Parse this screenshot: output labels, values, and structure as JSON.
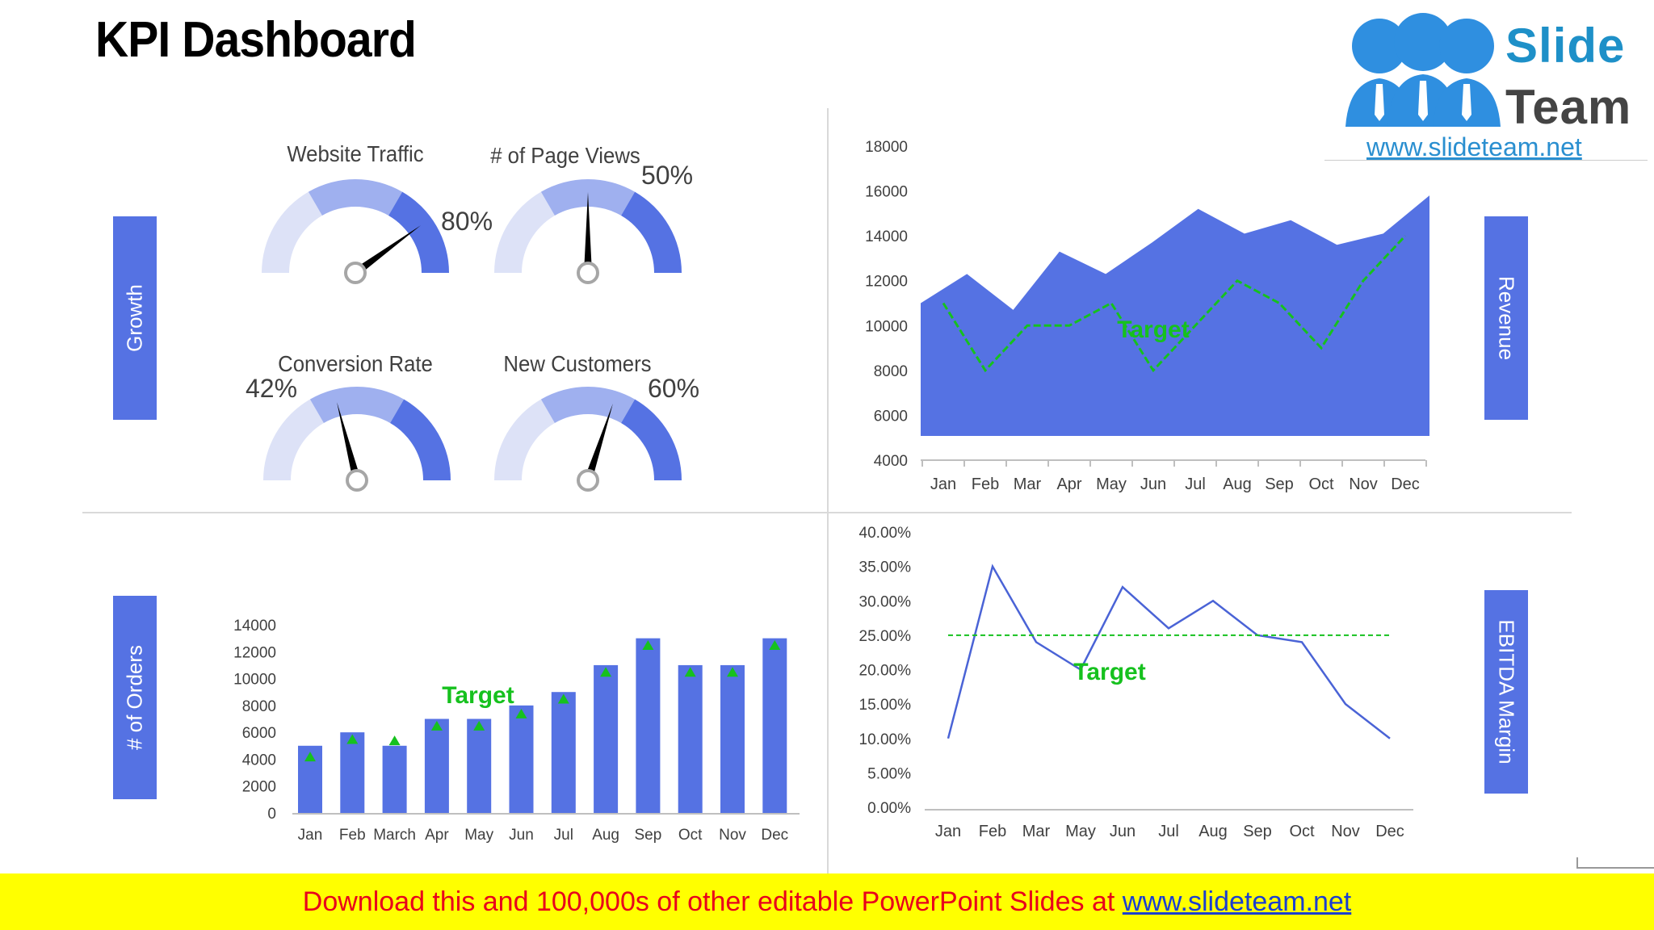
{
  "page_title": "KPI Dashboard",
  "labels": {
    "growth": "Growth",
    "revenue": "Revenue",
    "orders": "# of Orders",
    "ebitda": "EBITDA Margin"
  },
  "logo": {
    "word1": "Slide",
    "word2": "Team",
    "url": "www.slideteam.net",
    "colors": {
      "figures": "#2f8fe0",
      "text": "#1e90c8"
    }
  },
  "footer": {
    "text": "Download this and 100,000s of other editable PowerPoint Slides at ",
    "link": "www.slideteam.net"
  },
  "colors": {
    "accent": "#5572e3",
    "gauge_light": "#dde2f7",
    "gauge_mid": "#9fb0ef",
    "target": "#16c11e",
    "footer_bg": "#ffff00",
    "footer_text": "#e8001c"
  },
  "chart_data": [
    {
      "type": "gauge",
      "title": "Website Traffic",
      "value": 80,
      "value_label": "80%",
      "range": [
        0,
        100
      ]
    },
    {
      "type": "gauge",
      "title": "# of Page Views",
      "value": 50,
      "value_label": "50%",
      "range": [
        0,
        100
      ]
    },
    {
      "type": "gauge",
      "title": "Conversion Rate",
      "value": 42,
      "value_label": "42%",
      "range": [
        0,
        100
      ]
    },
    {
      "type": "gauge",
      "title": "New Customers",
      "value": 60,
      "value_label": "60%",
      "range": [
        0,
        100
      ]
    },
    {
      "type": "area",
      "categories": [
        "Jan",
        "Feb",
        "Mar",
        "Apr",
        "May",
        "Jun",
        "Jul",
        "Aug",
        "Sep",
        "Oct",
        "Nov",
        "Dec"
      ],
      "series": [
        {
          "values": [
            11000,
            12300,
            10700,
            13300,
            12300,
            13700,
            15200,
            14100,
            14700,
            13600,
            14100,
            15800
          ]
        },
        {
          "name": "Target",
          "type": "line",
          "values": [
            11000,
            8000,
            10000,
            10000,
            11000,
            8000,
            10000,
            12000,
            11000,
            9000,
            12000,
            14000
          ]
        }
      ],
      "ylim": [
        4000,
        18000
      ],
      "yticks": [
        "4000",
        "6000",
        "8000",
        "10000",
        "12000",
        "14000",
        "16000",
        "18000"
      ],
      "annotation": "Target"
    },
    {
      "type": "bar",
      "categories": [
        "Jan",
        "Feb",
        "March",
        "Apr",
        "May",
        "Jun",
        "Jul",
        "Aug",
        "Sep",
        "Oct",
        "Nov",
        "Dec"
      ],
      "series": [
        {
          "values": [
            5000,
            6000,
            5000,
            7000,
            7000,
            8000,
            9000,
            11000,
            13000,
            11000,
            11000,
            13000
          ]
        },
        {
          "name": "Target",
          "type": "marker",
          "values": [
            4200,
            5500,
            5400,
            6500,
            6500,
            7400,
            8500,
            10500,
            12500,
            10500,
            10500,
            12500
          ]
        }
      ],
      "ylim": [
        0,
        14000
      ],
      "yticks": [
        "0",
        "2000",
        "4000",
        "6000",
        "8000",
        "10000",
        "12000",
        "14000"
      ],
      "annotation": "Target"
    },
    {
      "type": "line",
      "categories": [
        "Jan",
        "Feb",
        "Mar",
        "May",
        "Jun",
        "Jul",
        "Aug",
        "Sep",
        "Oct",
        "Nov",
        "Dec"
      ],
      "series": [
        {
          "values": [
            10,
            35,
            24,
            20,
            32,
            26,
            30,
            25,
            24,
            15,
            10
          ]
        },
        {
          "name": "Target",
          "type": "dashed",
          "values": [
            25,
            25,
            25,
            25,
            25,
            25,
            25,
            25,
            25,
            25,
            25
          ]
        }
      ],
      "ylim": [
        0,
        40
      ],
      "yticks": [
        "0.00%",
        "5.00%",
        "10.00%",
        "15.00%",
        "20.00%",
        "25.00%",
        "30.00%",
        "35.00%",
        "40.00%"
      ],
      "annotation": "Target"
    }
  ]
}
